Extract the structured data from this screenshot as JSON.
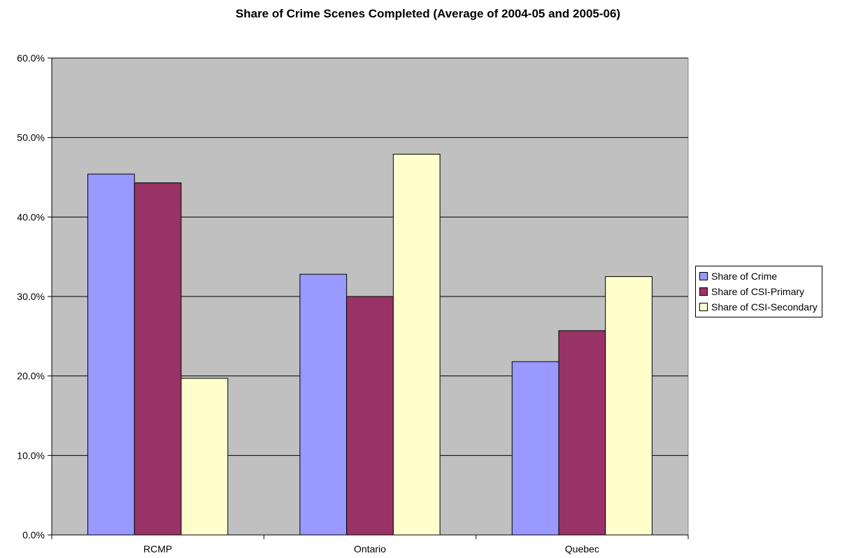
{
  "chart_data": {
    "type": "bar",
    "title": "Share of Crime Scenes Completed (Average of 2004-05 and 2005-06)",
    "xlabel": "",
    "ylabel": "",
    "categories": [
      "RCMP",
      "Ontario",
      "Quebec"
    ],
    "series": [
      {
        "name": "Share of Crime",
        "values": [
          45.4,
          32.8,
          21.8
        ],
        "color": "#9999ff"
      },
      {
        "name": "Share of CSI-Primary",
        "values": [
          44.3,
          30.0,
          25.7
        ],
        "color": "#993366"
      },
      {
        "name": "Share of CSI-Secondary",
        "values": [
          19.7,
          47.9,
          32.5
        ],
        "color": "#ffffcc"
      }
    ],
    "ylim": [
      0,
      60
    ],
    "yticks": [
      "0.0%",
      "10.0%",
      "20.0%",
      "30.0%",
      "40.0%",
      "50.0%",
      "60.0%"
    ],
    "grid": true,
    "legend_position": "right",
    "plot_background": "#c0c0c0"
  }
}
